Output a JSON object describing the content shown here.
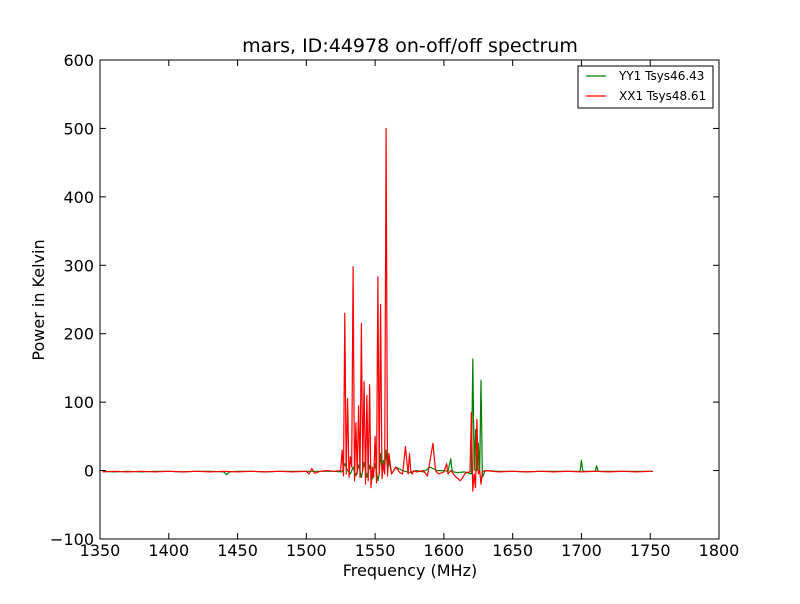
{
  "chart_data": {
    "type": "line",
    "title": "mars, ID:44978 on-off/off spectrum",
    "xlabel": "Frequency (MHz)",
    "ylabel": "Power in Kelvin",
    "xlim": [
      1350,
      1800
    ],
    "ylim": [
      -100,
      600
    ],
    "xticks": [
      1350,
      1400,
      1450,
      1500,
      1550,
      1600,
      1650,
      1700,
      1750,
      1800
    ],
    "yticks": [
      -100,
      0,
      100,
      200,
      300,
      400,
      500,
      600
    ],
    "grid": false,
    "legend_position": "top-right",
    "series": [
      {
        "name": "YY1 Tsys46.43",
        "color": "#008000",
        "x": [
          1352,
          1360,
          1370,
          1380,
          1390,
          1400,
          1410,
          1420,
          1430,
          1440,
          1442,
          1444,
          1450,
          1460,
          1470,
          1480,
          1490,
          1500,
          1510,
          1520,
          1526,
          1528,
          1530,
          1532,
          1534,
          1536,
          1538,
          1540,
          1542,
          1544,
          1546,
          1548,
          1550,
          1552,
          1553,
          1554,
          1555,
          1556,
          1557,
          1558,
          1559,
          1560,
          1562,
          1565,
          1570,
          1575,
          1580,
          1585,
          1590,
          1595,
          1600,
          1603,
          1605,
          1606,
          1607,
          1610,
          1615,
          1620,
          1621,
          1622,
          1623,
          1624,
          1625,
          1626,
          1627,
          1628,
          1630,
          1640,
          1650,
          1660,
          1670,
          1680,
          1690,
          1699,
          1700,
          1701,
          1705,
          1710,
          1711,
          1712,
          1720,
          1730,
          1740,
          1750,
          1752
        ],
        "y": [
          -1,
          -2,
          -1,
          -2,
          -1,
          -1,
          -2,
          -1,
          -1,
          -2,
          -6,
          -2,
          -1,
          -1,
          -2,
          -1,
          -1,
          -1,
          -1,
          -1,
          -2,
          10,
          0,
          -5,
          5,
          -8,
          8,
          -10,
          12,
          -10,
          8,
          -12,
          10,
          -15,
          -5,
          25,
          0,
          15,
          5,
          30,
          0,
          15,
          -5,
          5,
          0,
          -3,
          0,
          -2,
          5,
          0,
          0,
          -1,
          17,
          0,
          -2,
          -3,
          -2,
          -5,
          163,
          0,
          60,
          0,
          40,
          0,
          132,
          -10,
          0,
          -1,
          -1,
          -2,
          -1,
          -1,
          -1,
          -1,
          15,
          -1,
          -1,
          -1,
          7,
          -1,
          -1,
          -1,
          -1,
          -1,
          -1
        ]
      },
      {
        "name": "XX1 Tsys48.61",
        "color": "#ff0000",
        "x": [
          1352,
          1360,
          1370,
          1380,
          1390,
          1400,
          1410,
          1420,
          1430,
          1440,
          1450,
          1460,
          1470,
          1480,
          1490,
          1500,
          1502,
          1504,
          1506,
          1510,
          1515,
          1520,
          1525,
          1526,
          1527,
          1528,
          1529,
          1530,
          1531,
          1532,
          1533,
          1534,
          1535,
          1536,
          1537,
          1538,
          1539,
          1540,
          1541,
          1542,
          1543,
          1544,
          1545,
          1546,
          1547,
          1548,
          1549,
          1550,
          1551,
          1552,
          1553,
          1554,
          1555,
          1556,
          1557,
          1558,
          1559,
          1560,
          1562,
          1565,
          1568,
          1570,
          1572,
          1574,
          1575,
          1576,
          1577,
          1578,
          1580,
          1585,
          1588,
          1590,
          1592,
          1594,
          1596,
          1600,
          1602,
          1603,
          1605,
          1608,
          1612,
          1616,
          1619,
          1620,
          1621,
          1622,
          1623,
          1624,
          1625,
          1626,
          1627,
          1628,
          1630,
          1640,
          1650,
          1660,
          1670,
          1680,
          1690,
          1700,
          1710,
          1720,
          1730,
          1740,
          1750,
          1752
        ],
        "y": [
          -2,
          -1,
          -2,
          -1,
          -2,
          -1,
          -2,
          -1,
          -2,
          -1,
          -2,
          -1,
          -2,
          -1,
          -2,
          -1,
          -5,
          3,
          -4,
          -1,
          0,
          -1,
          0,
          30,
          -8,
          230,
          -5,
          105,
          -10,
          20,
          5,
          298,
          -15,
          70,
          -5,
          95,
          -10,
          215,
          0,
          130,
          -20,
          110,
          -15,
          125,
          -25,
          5,
          -10,
          50,
          -18,
          283,
          -5,
          243,
          -12,
          10,
          -5,
          500,
          -8,
          25,
          -5,
          5,
          -3,
          -5,
          35,
          -5,
          25,
          -3,
          -5,
          0,
          -2,
          0,
          -8,
          15,
          40,
          0,
          -5,
          -2,
          10,
          -5,
          0,
          -8,
          -15,
          -3,
          -2,
          85,
          -30,
          -5,
          -25,
          75,
          -5,
          0,
          -20,
          -2,
          0,
          -2,
          -1,
          -2,
          -1,
          -2,
          -1,
          -2,
          -1,
          -2,
          -1,
          -2,
          -1,
          -1
        ]
      }
    ]
  }
}
